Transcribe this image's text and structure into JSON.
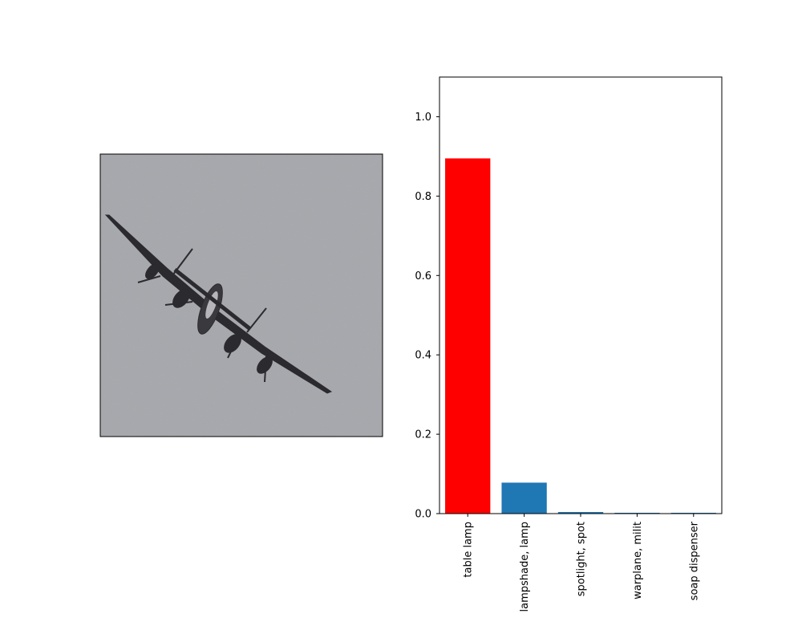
{
  "image_panel": {
    "subject": "four-engine propeller aircraft banking against an overcast grey sky",
    "sky_color": "#a5a6ab",
    "aircraft_color": "#2b2a2e"
  },
  "chart_data": {
    "type": "bar",
    "categories": [
      "table lamp",
      "lampshade, lamp",
      "spotlight, spot",
      "warplane, milit",
      "soap dispenser"
    ],
    "values": [
      0.895,
      0.078,
      0.004,
      0.002,
      0.002
    ],
    "colors": [
      "#ff0000",
      "#1f77b4",
      "#1f77b4",
      "#1f77b4",
      "#1f77b4"
    ],
    "title": "",
    "xlabel": "",
    "ylabel": "",
    "ylim": [
      0,
      1.1
    ],
    "yticks": [
      0.0,
      0.2,
      0.4,
      0.6,
      0.8,
      1.0
    ],
    "ytick_labels": [
      "0.0",
      "0.2",
      "0.4",
      "0.6",
      "0.8",
      "1.0"
    ],
    "grid": false
  }
}
